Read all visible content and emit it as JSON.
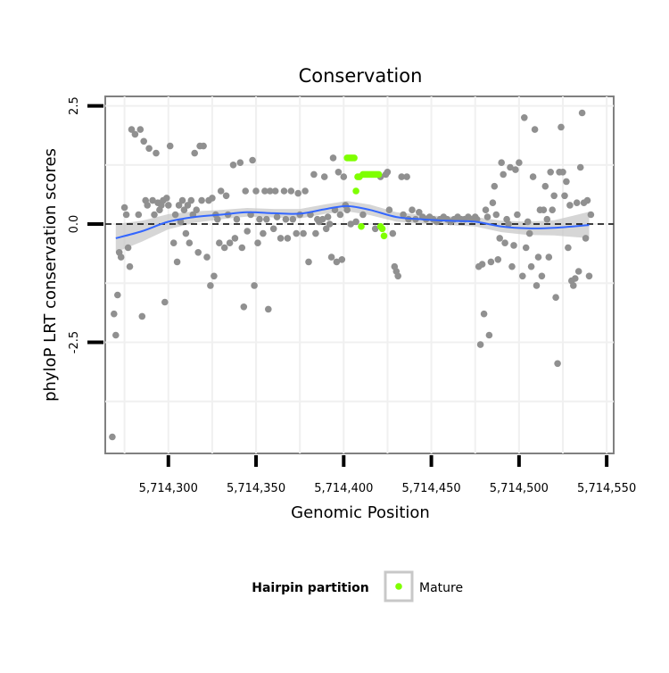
{
  "chart_data": {
    "type": "scatter",
    "title": "Conservation",
    "xlabel": "Genomic Position",
    "ylabel": "phyloP LRT conservation scores",
    "xlim": [
      5714264,
      5714554
    ],
    "ylim": [
      -4.85,
      2.7
    ],
    "x_ticks": [
      5714300,
      5714350,
      5714400,
      5714450,
      5714500,
      5714550
    ],
    "x_tick_labels": [
      "5,714,300",
      "5,714,350",
      "5,714,400",
      "5,714,450",
      "5,714,500",
      "5,714,550"
    ],
    "y_ticks": [
      2.5,
      0.0,
      -2.5
    ],
    "y_tick_labels": [
      "2.5",
      "0.0",
      "-2.5"
    ],
    "reference_line": {
      "y": 0,
      "style": "dashed"
    },
    "grid": true,
    "legend": {
      "title": "Hairpin partition",
      "placement": "bottom",
      "entries": [
        {
          "label": "Mature",
          "color": "#7fff00"
        }
      ]
    },
    "colors": {
      "background_points": "#909090",
      "mature": "#7fff00",
      "smooth": "#3366ff",
      "band": "#c8c8c8",
      "grid": "#f0f0f0",
      "panel_border": "#808080"
    },
    "smooth": {
      "x": [
        5714270,
        5714285,
        5714300,
        5714315,
        5714330,
        5714345,
        5714360,
        5714375,
        5714390,
        5714402,
        5714415,
        5714430,
        5714445,
        5714460,
        5714475,
        5714490,
        5714505,
        5714520,
        5714540
      ],
      "y": [
        -0.3,
        -0.15,
        0.05,
        0.15,
        0.2,
        0.25,
        0.23,
        0.22,
        0.32,
        0.38,
        0.3,
        0.15,
        0.1,
        0.07,
        0.05,
        -0.05,
        -0.09,
        -0.08,
        -0.02
      ],
      "se": [
        0.3,
        0.22,
        0.16,
        0.12,
        0.1,
        0.09,
        0.09,
        0.1,
        0.1,
        0.11,
        0.11,
        0.1,
        0.09,
        0.09,
        0.1,
        0.12,
        0.14,
        0.16,
        0.28
      ]
    },
    "series": [
      {
        "name": "Other",
        "points": [
          [
            5714268,
            -4.5
          ],
          [
            5714269,
            -1.9
          ],
          [
            5714270,
            -2.35
          ],
          [
            5714271,
            -1.5
          ],
          [
            5714272,
            -0.6
          ],
          [
            5714273,
            -0.7
          ],
          [
            5714275,
            0.35
          ],
          [
            5714276,
            0.2
          ],
          [
            5714277,
            -0.5
          ],
          [
            5714278,
            -0.9
          ],
          [
            5714279,
            2.0
          ],
          [
            5714281,
            1.9
          ],
          [
            5714283,
            0.2
          ],
          [
            5714284,
            2.0
          ],
          [
            5714285,
            -1.95
          ],
          [
            5714286,
            1.75
          ],
          [
            5714287,
            0.5
          ],
          [
            5714288,
            0.4
          ],
          [
            5714289,
            1.6
          ],
          [
            5714291,
            0.5
          ],
          [
            5714292,
            0.2
          ],
          [
            5714293,
            1.5
          ],
          [
            5714294,
            0.45
          ],
          [
            5714295,
            0.3
          ],
          [
            5714296,
            0.4
          ],
          [
            5714297,
            0.5
          ],
          [
            5714298,
            -1.65
          ],
          [
            5714299,
            0.55
          ],
          [
            5714300,
            0.4
          ],
          [
            5714301,
            1.65
          ],
          [
            5714303,
            -0.4
          ],
          [
            5714304,
            0.2
          ],
          [
            5714305,
            -0.8
          ],
          [
            5714306,
            0.4
          ],
          [
            5714307,
            0.05
          ],
          [
            5714308,
            0.5
          ],
          [
            5714309,
            0.3
          ],
          [
            5714310,
            -0.2
          ],
          [
            5714311,
            0.4
          ],
          [
            5714312,
            -0.4
          ],
          [
            5714313,
            0.5
          ],
          [
            5714314,
            0.2
          ],
          [
            5714315,
            1.5
          ],
          [
            5714316,
            0.3
          ],
          [
            5714317,
            -0.6
          ],
          [
            5714318,
            1.65
          ],
          [
            5714319,
            0.5
          ],
          [
            5714320,
            1.65
          ],
          [
            5714322,
            -0.7
          ],
          [
            5714323,
            0.5
          ],
          [
            5714324,
            -1.3
          ],
          [
            5714325,
            0.55
          ],
          [
            5714326,
            -1.1
          ],
          [
            5714327,
            0.2
          ],
          [
            5714328,
            0.1
          ],
          [
            5714329,
            -0.4
          ],
          [
            5714330,
            0.7
          ],
          [
            5714332,
            -0.5
          ],
          [
            5714333,
            0.6
          ],
          [
            5714334,
            0.2
          ],
          [
            5714335,
            -0.4
          ],
          [
            5714337,
            1.25
          ],
          [
            5714338,
            -0.3
          ],
          [
            5714339,
            0.1
          ],
          [
            5714341,
            1.3
          ],
          [
            5714342,
            -0.5
          ],
          [
            5714343,
            -1.75
          ],
          [
            5714344,
            0.7
          ],
          [
            5714345,
            -0.15
          ],
          [
            5714347,
            0.2
          ],
          [
            5714348,
            1.35
          ],
          [
            5714349,
            -1.3
          ],
          [
            5714350,
            0.7
          ],
          [
            5714351,
            -0.4
          ],
          [
            5714352,
            0.1
          ],
          [
            5714354,
            -0.2
          ],
          [
            5714355,
            0.7
          ],
          [
            5714356,
            0.1
          ],
          [
            5714357,
            -1.8
          ],
          [
            5714358,
            0.7
          ],
          [
            5714360,
            -0.1
          ],
          [
            5714361,
            0.7
          ],
          [
            5714362,
            0.15
          ],
          [
            5714364,
            -0.3
          ],
          [
            5714366,
            0.7
          ],
          [
            5714367,
            0.1
          ],
          [
            5714368,
            -0.3
          ],
          [
            5714370,
            0.7
          ],
          [
            5714371,
            0.1
          ],
          [
            5714373,
            -0.2
          ],
          [
            5714374,
            0.65
          ],
          [
            5714375,
            0.2
          ],
          [
            5714377,
            -0.2
          ],
          [
            5714378,
            0.7
          ],
          [
            5714380,
            -0.8
          ],
          [
            5714381,
            0.2
          ],
          [
            5714383,
            1.05
          ],
          [
            5714384,
            -0.2
          ],
          [
            5714385,
            0.1
          ],
          [
            5714386,
            0.05
          ],
          [
            5714388,
            0.1
          ],
          [
            5714389,
            1.0
          ],
          [
            5714390,
            -0.1
          ],
          [
            5714391,
            0.15
          ],
          [
            5714392,
            0.0
          ],
          [
            5714393,
            -0.7
          ],
          [
            5714394,
            1.4
          ],
          [
            5714395,
            0.3
          ],
          [
            5714396,
            -0.8
          ],
          [
            5714397,
            1.1
          ],
          [
            5714398,
            0.2
          ],
          [
            5714399,
            -0.75
          ],
          [
            5714400,
            1.0
          ],
          [
            5714401,
            0.4
          ],
          [
            5714402,
            0.3
          ],
          [
            5714404,
            0.0
          ],
          [
            5714407,
            0.05
          ],
          [
            5714411,
            0.2
          ],
          [
            5714418,
            -0.1
          ],
          [
            5714421,
            1.0
          ],
          [
            5714424,
            1.05
          ],
          [
            5714425,
            1.1
          ],
          [
            5714426,
            0.3
          ],
          [
            5714428,
            -0.2
          ],
          [
            5714429,
            -0.9
          ],
          [
            5714430,
            -1.0
          ],
          [
            5714431,
            -1.1
          ],
          [
            5714433,
            1.0
          ],
          [
            5714434,
            0.2
          ],
          [
            5714436,
            1.0
          ],
          [
            5714437,
            0.1
          ],
          [
            5714439,
            0.3
          ],
          [
            5714441,
            0.1
          ],
          [
            5714443,
            0.25
          ],
          [
            5714445,
            0.15
          ],
          [
            5714447,
            0.1
          ],
          [
            5714449,
            0.15
          ],
          [
            5714451,
            0.1
          ],
          [
            5714453,
            0.05
          ],
          [
            5714455,
            0.1
          ],
          [
            5714457,
            0.15
          ],
          [
            5714459,
            0.1
          ],
          [
            5714461,
            0.05
          ],
          [
            5714463,
            0.1
          ],
          [
            5714465,
            0.15
          ],
          [
            5714467,
            0.1
          ],
          [
            5714469,
            0.1
          ],
          [
            5714471,
            0.15
          ],
          [
            5714473,
            0.1
          ],
          [
            5714475,
            0.15
          ],
          [
            5714476,
            0.1
          ],
          [
            5714477,
            -0.9
          ],
          [
            5714478,
            -2.55
          ],
          [
            5714479,
            -0.85
          ],
          [
            5714480,
            -1.9
          ],
          [
            5714481,
            0.3
          ],
          [
            5714482,
            0.15
          ],
          [
            5714483,
            -2.35
          ],
          [
            5714484,
            -0.8
          ],
          [
            5714485,
            0.45
          ],
          [
            5714486,
            0.8
          ],
          [
            5714487,
            0.2
          ],
          [
            5714488,
            -0.75
          ],
          [
            5714489,
            -0.3
          ],
          [
            5714490,
            1.3
          ],
          [
            5714491,
            1.05
          ],
          [
            5714492,
            -0.4
          ],
          [
            5714493,
            0.1
          ],
          [
            5714494,
            0.0
          ],
          [
            5714495,
            1.2
          ],
          [
            5714496,
            -0.9
          ],
          [
            5714497,
            -0.45
          ],
          [
            5714498,
            1.15
          ],
          [
            5714499,
            0.2
          ],
          [
            5714500,
            1.3
          ],
          [
            5714502,
            -1.1
          ],
          [
            5714503,
            2.25
          ],
          [
            5714504,
            -0.5
          ],
          [
            5714505,
            0.05
          ],
          [
            5714506,
            -0.2
          ],
          [
            5714507,
            -0.9
          ],
          [
            5714508,
            1.0
          ],
          [
            5714509,
            2.0
          ],
          [
            5714510,
            -1.3
          ],
          [
            5714511,
            -0.7
          ],
          [
            5714512,
            0.3
          ],
          [
            5714513,
            -1.1
          ],
          [
            5714514,
            0.3
          ],
          [
            5714515,
            0.8
          ],
          [
            5714516,
            0.1
          ],
          [
            5714517,
            -0.7
          ],
          [
            5714518,
            1.1
          ],
          [
            5714519,
            0.3
          ],
          [
            5714520,
            0.6
          ],
          [
            5714521,
            -1.55
          ],
          [
            5714522,
            -2.95
          ],
          [
            5714523,
            1.1
          ],
          [
            5714524,
            2.05
          ],
          [
            5714525,
            1.1
          ],
          [
            5714526,
            0.6
          ],
          [
            5714527,
            0.9
          ],
          [
            5714528,
            -0.5
          ],
          [
            5714529,
            0.4
          ],
          [
            5714530,
            -1.2
          ],
          [
            5714531,
            -1.3
          ],
          [
            5714532,
            -1.15
          ],
          [
            5714533,
            0.45
          ],
          [
            5714534,
            -1.0
          ],
          [
            5714535,
            1.2
          ],
          [
            5714536,
            2.35
          ],
          [
            5714537,
            0.45
          ],
          [
            5714538,
            -0.3
          ],
          [
            5714539,
            0.5
          ],
          [
            5714540,
            -1.1
          ],
          [
            5714541,
            0.2
          ]
        ]
      },
      {
        "name": "Mature",
        "points": [
          [
            5714402,
            1.4
          ],
          [
            5714403,
            1.4
          ],
          [
            5714404,
            1.4
          ],
          [
            5714405,
            1.4
          ],
          [
            5714406,
            1.4
          ],
          [
            5714407,
            0.7
          ],
          [
            5714408,
            1.0
          ],
          [
            5714409,
            1.0
          ],
          [
            5714410,
            -0.05
          ],
          [
            5714411,
            1.05
          ],
          [
            5714412,
            1.05
          ],
          [
            5714413,
            1.05
          ],
          [
            5714414,
            1.05
          ],
          [
            5714415,
            1.05
          ],
          [
            5714416,
            1.05
          ],
          [
            5714417,
            1.05
          ],
          [
            5714418,
            1.05
          ],
          [
            5714419,
            1.05
          ],
          [
            5714420,
            1.05
          ],
          [
            5714421,
            -0.05
          ],
          [
            5714422,
            -0.1
          ],
          [
            5714423,
            -0.25
          ]
        ]
      }
    ]
  }
}
